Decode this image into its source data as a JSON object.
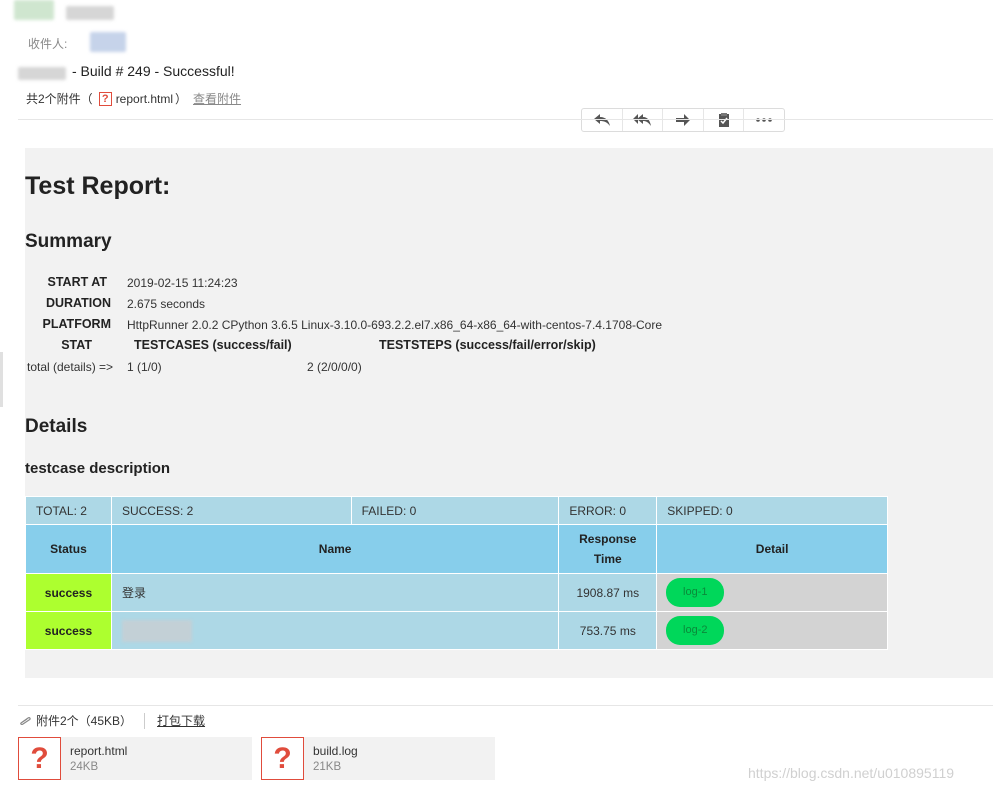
{
  "header": {
    "recipient_label": "收件人:",
    "subject": "- Build # 249 - Successful!",
    "attachments_prefix": "共2个附件（",
    "attachment_inline_name": "report.html",
    "attachments_suffix": "）",
    "view_attachments": "查看附件"
  },
  "toolbar": {
    "buttons": [
      {
        "icon": "reply-icon"
      },
      {
        "icon": "reply-all-icon"
      },
      {
        "icon": "forward-icon"
      },
      {
        "icon": "clipboard-icon"
      },
      {
        "icon": "more-icon"
      }
    ]
  },
  "report": {
    "title": "Test Report:",
    "summary_heading": "Summary",
    "summary": {
      "start_at_label": "START AT",
      "start_at": "2019-02-15 11:24:23",
      "duration_label": "DURATION",
      "duration": "2.675 seconds",
      "platform_label": "PLATFORM",
      "platform": "HttpRunner 2.0.2 CPython 3.6.5 Linux-3.10.0-693.2.2.el7.x86_64-x86_64-with-centos-7.4.1708-Core",
      "stat_label": "STAT",
      "testcases_label": "TESTCASES (success/fail)",
      "teststeps_label": "TESTSTEPS (success/fail/error/skip)",
      "total_label": "total (details) =>",
      "total_testcases": "1 (1/0)",
      "total_teststeps": "2 (2/0/0/0)"
    },
    "details_heading": "Details",
    "testcase_heading": "testcase description",
    "totals": {
      "total": "TOTAL: 2",
      "success": "SUCCESS: 2",
      "failed": "FAILED: 0",
      "error": "ERROR: 0",
      "skipped": "SKIPPED: 0"
    },
    "columns": {
      "status": "Status",
      "name": "Name",
      "response_time_line1": "Response",
      "response_time_line2": "Time",
      "detail": "Detail"
    },
    "rows": [
      {
        "status": "success",
        "name": "登录",
        "response_time": "1908.87 ms",
        "log": "log-1"
      },
      {
        "status": "success",
        "name": "",
        "response_time": "753.75 ms",
        "log": "log-2"
      }
    ]
  },
  "attachments": {
    "header": "附件2个（45KB）",
    "download_all": "打包下载",
    "files": [
      {
        "name": "report.html",
        "size": "24KB"
      },
      {
        "name": "build.log",
        "size": "21KB"
      }
    ]
  },
  "watermark": "https://blog.csdn.net/u010895119"
}
